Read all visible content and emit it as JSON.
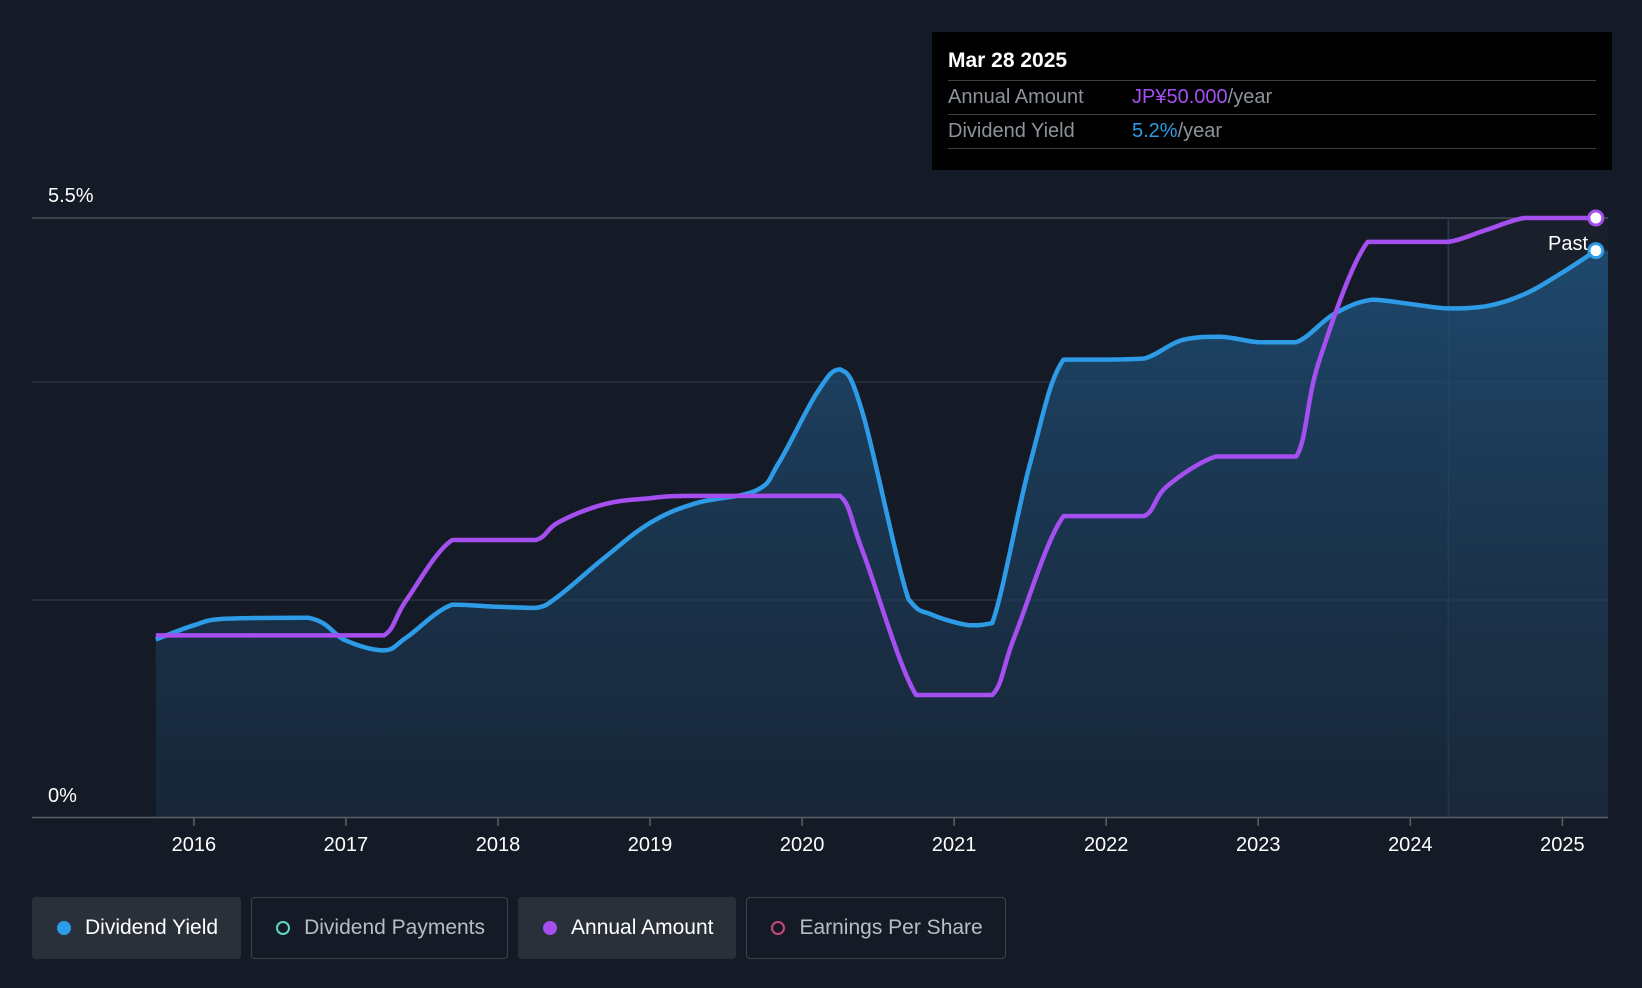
{
  "colors": {
    "background": "#151b26",
    "yield": "#2d9be6",
    "annual": "#a64ff0",
    "payments": "#5ed6c8",
    "eps": "#c8467c"
  },
  "tooltip": {
    "date": "Mar 28 2025",
    "rows": [
      {
        "label": "Annual Amount",
        "value": "JP¥50.000",
        "unit": "/year"
      },
      {
        "label": "Dividend Yield",
        "value": "5.2%",
        "unit": "/year"
      }
    ]
  },
  "past_label": "Past",
  "legend": [
    {
      "label": "Dividend Yield",
      "active": true,
      "filled": true,
      "color": "#2d9be6"
    },
    {
      "label": "Dividend Payments",
      "active": false,
      "filled": false,
      "color": "#5ed6c8"
    },
    {
      "label": "Annual Amount",
      "active": true,
      "filled": true,
      "color": "#a64ff0"
    },
    {
      "label": "Earnings Per Share",
      "active": false,
      "filled": false,
      "color": "#c8467c"
    }
  ],
  "chart_data": {
    "type": "line",
    "y_tick_labels": [
      "5.5%",
      "0%"
    ],
    "ylim": [
      0,
      5.5
    ],
    "xlim": [
      2015.35,
      2025.3
    ],
    "x_ticks": [
      2016,
      2017,
      2018,
      2019,
      2020,
      2021,
      2022,
      2023,
      2024,
      2025
    ],
    "grid": true,
    "legend_position": "bottom",
    "series": [
      {
        "name": "Dividend Yield",
        "unit": "%",
        "x": [
          2015.75,
          2016.0,
          2016.2,
          2016.75,
          2017.0,
          2017.25,
          2017.4,
          2017.7,
          2018.0,
          2018.25,
          2018.4,
          2018.7,
          2019.0,
          2019.3,
          2019.7,
          2019.85,
          2020.1,
          2020.25,
          2020.4,
          2020.7,
          2020.85,
          2021.1,
          2021.25,
          2021.5,
          2021.72,
          2022.0,
          2022.25,
          2022.5,
          2022.75,
          2023.0,
          2023.25,
          2023.5,
          2023.75,
          2024.0,
          2024.25,
          2024.5,
          2024.75,
          2025.0,
          2025.22
        ],
        "y": [
          1.63,
          1.76,
          1.82,
          1.83,
          1.62,
          1.53,
          1.65,
          1.95,
          1.93,
          1.92,
          2.03,
          2.38,
          2.7,
          2.88,
          3.0,
          3.26,
          3.9,
          4.11,
          3.7,
          2.0,
          1.86,
          1.76,
          1.78,
          3.25,
          4.2,
          4.2,
          4.21,
          4.38,
          4.41,
          4.36,
          4.36,
          4.62,
          4.75,
          4.71,
          4.67,
          4.69,
          4.8,
          5.0,
          5.2
        ]
      },
      {
        "name": "Annual Amount",
        "unit": "JP¥",
        "x": [
          2015.75,
          2017.0,
          2017.25,
          2017.4,
          2017.7,
          2018.0,
          2018.25,
          2018.4,
          2018.7,
          2019.0,
          2019.25,
          2020.0,
          2020.25,
          2020.4,
          2020.75,
          2021.0,
          2021.25,
          2021.4,
          2021.72,
          2022.0,
          2022.25,
          2022.4,
          2022.72,
          2023.0,
          2023.25,
          2023.4,
          2023.72,
          2024.0,
          2024.25,
          2024.5,
          2024.75,
          2025.0,
          2025.22
        ],
        "y": [
          15.0,
          15.0,
          15.0,
          18.0,
          23.0,
          23.0,
          23.0,
          24.5,
          26.0,
          26.5,
          26.7,
          26.7,
          26.7,
          22.0,
          10.0,
          10.0,
          10.0,
          15.0,
          25.0,
          25.0,
          25.0,
          27.5,
          30.0,
          30.0,
          30.0,
          38.0,
          48.0,
          48.0,
          48.0,
          49.0,
          50.0,
          50.0,
          50.0
        ]
      }
    ]
  }
}
